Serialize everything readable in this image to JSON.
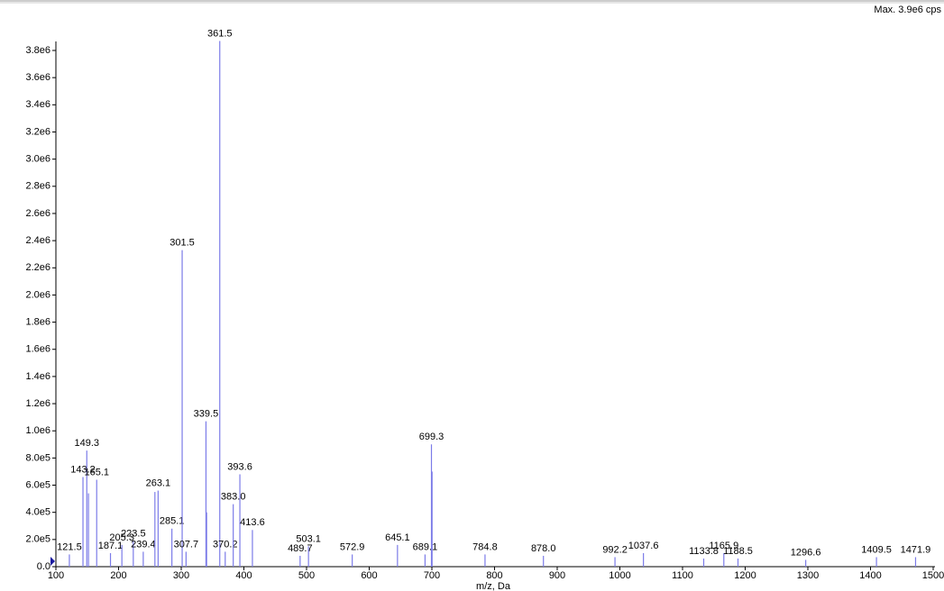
{
  "chart_data": {
    "type": "stem",
    "header": "Max. 3.9e6 cps",
    "x_label": "m/z, Da",
    "color": "#7b7be8",
    "xlim": [
      100,
      1500
    ],
    "xticks": [
      100,
      200,
      300,
      400,
      500,
      600,
      700,
      800,
      900,
      1000,
      1100,
      1200,
      1300,
      1400,
      1500
    ],
    "ylim": [
      0,
      3900000
    ],
    "yticks": [
      {
        "value": 0,
        "label": "0.0"
      },
      {
        "value": 200000,
        "label": "2.0e5"
      },
      {
        "value": 400000,
        "label": "4.0e5"
      },
      {
        "value": 600000,
        "label": "6.0e5"
      },
      {
        "value": 800000,
        "label": "8.0e5"
      },
      {
        "value": 1000000,
        "label": "1.0e6"
      },
      {
        "value": 1200000,
        "label": "1.2e6"
      },
      {
        "value": 1400000,
        "label": "1.4e6"
      },
      {
        "value": 1600000,
        "label": "1.6e6"
      },
      {
        "value": 1800000,
        "label": "1.8e6"
      },
      {
        "value": 2000000,
        "label": "2.0e6"
      },
      {
        "value": 2200000,
        "label": "2.2e6"
      },
      {
        "value": 2400000,
        "label": "2.4e6"
      },
      {
        "value": 2600000,
        "label": "2.6e6"
      },
      {
        "value": 2800000,
        "label": "2.8e6"
      },
      {
        "value": 3000000,
        "label": "3.0e6"
      },
      {
        "value": 3200000,
        "label": "3.2e6"
      },
      {
        "value": 3400000,
        "label": "3.4e6"
      },
      {
        "value": 3600000,
        "label": "3.6e6"
      },
      {
        "value": 3800000,
        "label": "3.8e6"
      }
    ],
    "x": [
      121.5,
      143.2,
      149.3,
      152.0,
      165.1,
      187.1,
      205.3,
      223.5,
      239.4,
      258.0,
      263.1,
      285.1,
      301.5,
      307.7,
      339.5,
      340.5,
      361.5,
      370.2,
      383.0,
      393.6,
      413.6,
      489.7,
      503.1,
      572.9,
      645.1,
      689.1,
      699.3,
      700.3,
      784.8,
      878.0,
      992.2,
      1037.6,
      1133.8,
      1165.9,
      1188.5,
      1296.6,
      1409.5,
      1471.9
    ],
    "x_labels": [
      "121.5",
      "143.2",
      "149.3",
      null,
      "165.1",
      "187.1",
      "205.3",
      "223.5",
      "239.4",
      null,
      "263.1",
      "285.1",
      "301.5",
      "307.7",
      "339.5",
      null,
      "361.5",
      "370.2",
      "383.0",
      "393.6",
      "413.6",
      "489.7",
      "503.1",
      "572.9",
      "645.1",
      "689.1",
      "699.3",
      null,
      "784.8",
      "878.0",
      "992.2",
      "1037.6",
      "1133.8",
      "1165.9",
      "1188.5",
      "1296.6",
      "1409.5",
      "1471.9"
    ],
    "values": [
      90000,
      660000,
      855000,
      540000,
      640000,
      100000,
      160000,
      190000,
      110000,
      550000,
      560000,
      280000,
      2330000,
      110000,
      1070000,
      400000,
      3870000,
      110000,
      460000,
      680000,
      270000,
      80000,
      150000,
      90000,
      160000,
      90000,
      900000,
      700000,
      90000,
      80000,
      70000,
      100000,
      60000,
      100000,
      60000,
      50000,
      70000,
      70000
    ]
  }
}
